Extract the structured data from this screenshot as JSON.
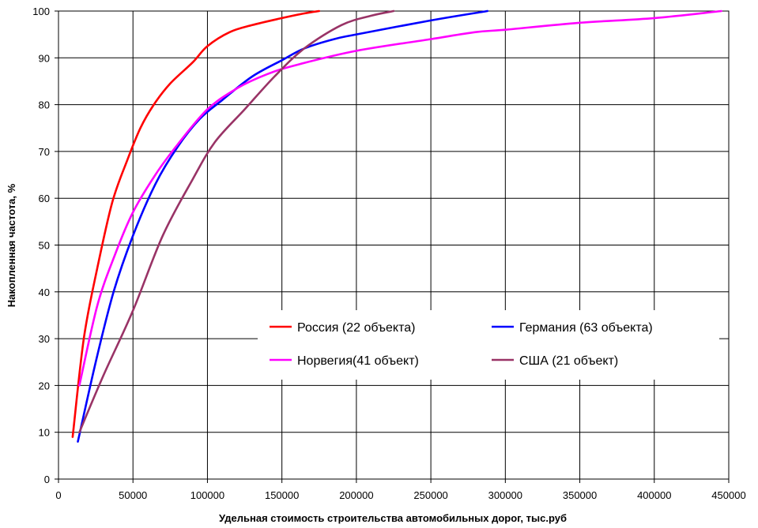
{
  "chart_data": {
    "type": "line",
    "title": "",
    "xlabel": "Удельная стоимость строительства автомобильных дорог, тыс.руб",
    "ylabel": "Накопленная частота, %",
    "xlim": [
      0,
      450000
    ],
    "ylim": [
      0,
      100
    ],
    "x_ticks": [
      0,
      50000,
      100000,
      150000,
      200000,
      250000,
      300000,
      350000,
      400000,
      450000
    ],
    "y_ticks": [
      0,
      10,
      20,
      30,
      40,
      50,
      60,
      70,
      80,
      90,
      100
    ],
    "grid": true,
    "legend_position": "inside-center-bottom",
    "series": [
      {
        "name": "Россия (22 объекта)",
        "color": "#ff0000",
        "points": [
          [
            9500,
            9
          ],
          [
            17000,
            30
          ],
          [
            26000,
            45
          ],
          [
            36000,
            59
          ],
          [
            46000,
            68
          ],
          [
            55000,
            75
          ],
          [
            64000,
            80
          ],
          [
            75000,
            84.5
          ],
          [
            90000,
            89
          ],
          [
            100000,
            92.5
          ],
          [
            115000,
            95.5
          ],
          [
            130000,
            97
          ],
          [
            150000,
            98.5
          ],
          [
            165000,
            99.5
          ],
          [
            175000,
            100
          ]
        ]
      },
      {
        "name": "Германия (63 объекта)",
        "color": "#0000ff",
        "points": [
          [
            13000,
            8
          ],
          [
            25000,
            25
          ],
          [
            37000,
            40
          ],
          [
            50000,
            52
          ],
          [
            65000,
            63
          ],
          [
            80000,
            71
          ],
          [
            95000,
            77
          ],
          [
            110000,
            81
          ],
          [
            130000,
            86
          ],
          [
            150000,
            89.5
          ],
          [
            165000,
            92
          ],
          [
            185000,
            94
          ],
          [
            200000,
            95
          ],
          [
            250000,
            98
          ],
          [
            288000,
            100
          ]
        ]
      },
      {
        "name": "Норвегия(41 объект)",
        "color": "#ff00ff",
        "points": [
          [
            14000,
            20
          ],
          [
            26000,
            37
          ],
          [
            38000,
            48
          ],
          [
            50000,
            57
          ],
          [
            65000,
            65
          ],
          [
            80000,
            71.5
          ],
          [
            100000,
            79
          ],
          [
            120000,
            83.5
          ],
          [
            140000,
            86.5
          ],
          [
            160000,
            88.5
          ],
          [
            200000,
            91.5
          ],
          [
            250000,
            94
          ],
          [
            280000,
            95.5
          ],
          [
            300000,
            96
          ],
          [
            350000,
            97.5
          ],
          [
            400000,
            98.5
          ],
          [
            445000,
            100
          ]
        ]
      },
      {
        "name": "США (21 объект)",
        "color": "#993366",
        "points": [
          [
            14000,
            10
          ],
          [
            30000,
            22
          ],
          [
            50000,
            36
          ],
          [
            70000,
            52
          ],
          [
            90000,
            64
          ],
          [
            105000,
            72
          ],
          [
            125000,
            79
          ],
          [
            145000,
            86
          ],
          [
            165000,
            92
          ],
          [
            190000,
            97
          ],
          [
            210000,
            99
          ],
          [
            225000,
            100
          ]
        ]
      }
    ]
  }
}
